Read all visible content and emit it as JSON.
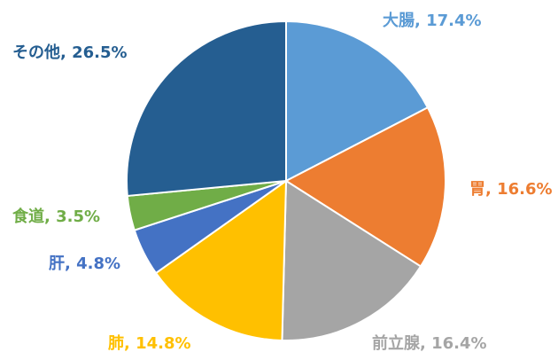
{
  "chart_data": {
    "type": "pie",
    "categories": [
      "大腸",
      "胃",
      "前立腺",
      "肺",
      "肝",
      "食道",
      "その他"
    ],
    "values": [
      17.4,
      16.6,
      16.4,
      14.8,
      4.8,
      3.5,
      26.5
    ],
    "value_labels": [
      ", 17.4%",
      ", 16.6%",
      ", 16.4%",
      ", 14.8%",
      ", 4.8%",
      ", 3.5%",
      ", 26.5%"
    ],
    "colors": [
      "#5b9bd5",
      "#ed7d31",
      "#a5a5a5",
      "#ffc000",
      "#4472c4",
      "#70ad47",
      "#255e91"
    ]
  }
}
